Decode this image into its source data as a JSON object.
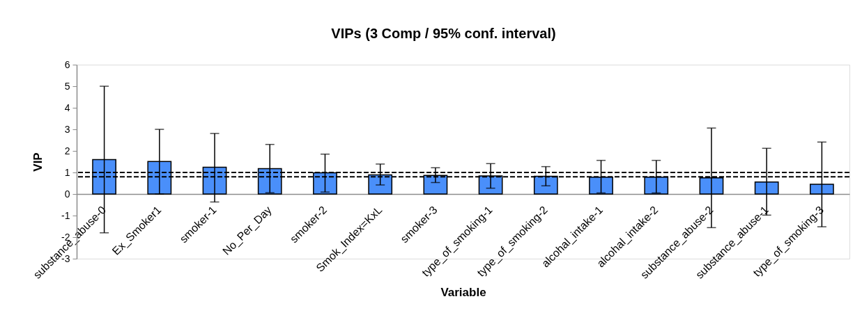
{
  "chart_data": {
    "type": "bar",
    "title": "VIPs (3 Comp / 95% conf. interval)",
    "xlabel": "Variable",
    "ylabel": "VIP",
    "categories": [
      "substance_abuse-0",
      "Ex_Smoker1",
      "smoker-1",
      "No_Per_Day",
      "smoker-2",
      "Smok_Index=KxL",
      "smoker-3",
      "type_of_smoking-1",
      "type_of_smoking-2",
      "alcohal_intake-1",
      "alcohal_intake-2",
      "substance_abuse-2",
      "substance_abuse-1",
      "type_of_smoking-3"
    ],
    "series": [
      {
        "color": "#4a8ffa",
        "values": [
          1.6,
          1.51,
          1.24,
          1.18,
          0.98,
          0.89,
          0.86,
          0.84,
          0.82,
          0.78,
          0.78,
          0.75,
          0.56,
          0.45
        ],
        "errors": [
          [
            -1.8,
            5.0
          ],
          [
            0.0,
            3.0
          ],
          [
            -0.37,
            2.81
          ],
          [
            0.06,
            2.3
          ],
          [
            0.09,
            1.85
          ],
          [
            0.42,
            1.39
          ],
          [
            0.53,
            1.22
          ],
          [
            0.27,
            1.41
          ],
          [
            0.38,
            1.27
          ],
          [
            0.05,
            1.56
          ],
          [
            0.05,
            1.56
          ],
          [
            -1.56,
            3.06
          ],
          [
            -0.98,
            2.12
          ],
          [
            -1.52,
            2.41
          ]
        ]
      }
    ],
    "ylim": [
      -3,
      6
    ],
    "yticks": [
      -3,
      -2,
      -1,
      0,
      1,
      2,
      3,
      4,
      5,
      6
    ],
    "ref_lines": [
      {
        "axis": "y",
        "value": 1.0,
        "color": "#000000",
        "line_style": "dashed"
      },
      {
        "axis": "y",
        "value": 0.8,
        "color": "#000000",
        "line_style": "dashed"
      }
    ]
  }
}
